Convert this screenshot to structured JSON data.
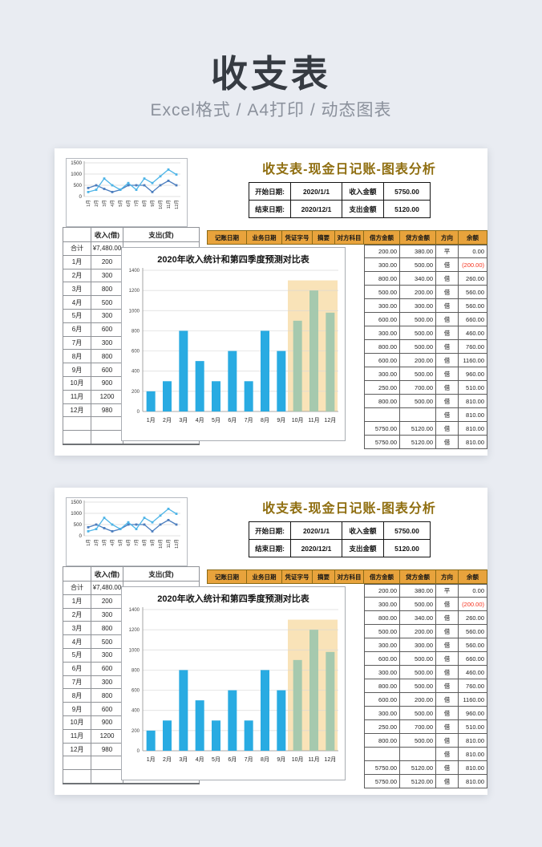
{
  "page": {
    "title": "收支表",
    "subtitle": "Excel格式 / A4打印 / 动态图表"
  },
  "colors": {
    "title_gold": "#8f6e10",
    "header_orange": "#e8a33c",
    "bar_blue": "#29abe2",
    "forecast_green": "#a6c9ae",
    "highlight_beige": "#f9e3b8",
    "line_income_blue": "#4cb4e7",
    "line_expense_blue": "#4b7dbe",
    "negative_red": "#f5311d"
  },
  "sheet": {
    "title": "收支表-现金日记账-图表分析",
    "info": {
      "start_label": "开始日期:",
      "start_value": "2020/1/1",
      "income_label": "收入金额",
      "income_value": "5750.00",
      "end_label": "结束日期:",
      "end_value": "2020/12/1",
      "expense_label": "支出金额",
      "expense_value": "5120.00"
    },
    "ledger": {
      "headers": [
        "记账日期",
        "业务日期",
        "凭证字号",
        "摘要",
        "对方科目",
        "借方金额",
        "贷方金额",
        "方向",
        "余额"
      ],
      "rows": [
        [
          "200.00",
          "380.00",
          "平",
          "0.00"
        ],
        [
          "300.00",
          "500.00",
          "借",
          "(200.00)"
        ],
        [
          "800.00",
          "340.00",
          "借",
          "260.00"
        ],
        [
          "500.00",
          "200.00",
          "借",
          "560.00"
        ],
        [
          "300.00",
          "300.00",
          "借",
          "560.00"
        ],
        [
          "600.00",
          "500.00",
          "借",
          "660.00"
        ],
        [
          "300.00",
          "500.00",
          "借",
          "460.00"
        ],
        [
          "800.00",
          "500.00",
          "借",
          "760.00"
        ],
        [
          "600.00",
          "200.00",
          "借",
          "1160.00"
        ],
        [
          "300.00",
          "500.00",
          "借",
          "960.00"
        ],
        [
          "250.00",
          "700.00",
          "借",
          "510.00"
        ],
        [
          "800.00",
          "500.00",
          "借",
          "810.00"
        ],
        [
          "",
          "",
          "借",
          "810.00"
        ],
        [
          "5750.00",
          "5120.00",
          "借",
          "810.00"
        ],
        [
          "5750.00",
          "5120.00",
          "借",
          "810.00"
        ]
      ]
    },
    "summary": {
      "headers": [
        "",
        "收入(借)",
        "支出(贷)"
      ],
      "rows": [
        [
          "合计",
          "¥7,480.00"
        ],
        [
          "1月",
          "200"
        ],
        [
          "2月",
          "300"
        ],
        [
          "3月",
          "800"
        ],
        [
          "4月",
          "500"
        ],
        [
          "5月",
          "300"
        ],
        [
          "6月",
          "600"
        ],
        [
          "7月",
          "300"
        ],
        [
          "8月",
          "800"
        ],
        [
          "9月",
          "600"
        ],
        [
          "10月",
          "900"
        ],
        [
          "11月",
          "1200"
        ],
        [
          "12月",
          "980"
        ],
        [
          "",
          ""
        ],
        [
          "",
          ""
        ]
      ]
    }
  },
  "chart_data": [
    {
      "type": "line",
      "title": "",
      "categories": [
        "1月",
        "2月",
        "3月",
        "4月",
        "5月",
        "6月",
        "7月",
        "8月",
        "9月",
        "10月",
        "11月",
        "12月"
      ],
      "series": [
        {
          "name": "收入(借)",
          "color": "#4cb4e7",
          "values": [
            200,
            300,
            800,
            500,
            300,
            600,
            300,
            800,
            600,
            900,
            1200,
            980
          ]
        },
        {
          "name": "支出(贷)",
          "color": "#4b7dbe",
          "values": [
            380,
            500,
            340,
            200,
            300,
            500,
            500,
            500,
            200,
            500,
            700,
            500
          ]
        }
      ],
      "xlabel": "",
      "ylabel": "",
      "ylim": [
        0,
        1500
      ],
      "yticks": [
        0,
        500,
        1000,
        1500
      ],
      "grid": true,
      "legend": "none"
    },
    {
      "type": "bar",
      "title": "2020年收入统计和第四季度预测对比表",
      "categories": [
        "1月",
        "2月",
        "3月",
        "4月",
        "5月",
        "6月",
        "7月",
        "8月",
        "9月",
        "10月",
        "11月",
        "12月"
      ],
      "values": [
        200,
        300,
        800,
        500,
        300,
        600,
        300,
        800,
        600,
        900,
        1200,
        980
      ],
      "xlabel": "",
      "ylabel": "",
      "ylim": [
        0,
        1400
      ],
      "yticks": [
        0,
        200,
        400,
        600,
        800,
        1000,
        1200,
        1400
      ],
      "grid": true,
      "legend": "none",
      "forecast_from_index": 9,
      "highlight": {
        "from": "10月",
        "to": "12月",
        "ymax": 1300,
        "color": "#f9e3b8"
      }
    }
  ]
}
